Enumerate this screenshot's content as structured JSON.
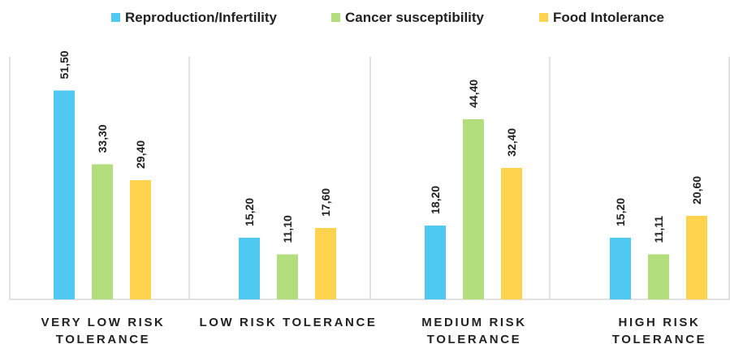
{
  "chart_data": {
    "type": "bar",
    "title": "",
    "xlabel": "",
    "ylabel": "",
    "ylim": [
      0,
      55
    ],
    "grid": false,
    "legend_position": "top",
    "categories": [
      [
        "VERY LOW RISK",
        "TOLERANCE"
      ],
      [
        "LOW RISK TOLERANCE"
      ],
      [
        "MEDIUM RISK",
        "TOLERANCE"
      ],
      [
        "HIGH RISK",
        "TOLERANCE"
      ]
    ],
    "series": [
      {
        "name": "Reproduction/Infertility",
        "color": "#4fc8f2",
        "values": [
          51.5,
          15.2,
          18.2,
          15.2
        ],
        "labels": [
          "51,50",
          "15,20",
          "18,20",
          "15,20"
        ]
      },
      {
        "name": "Cancer susceptibility",
        "color": "#b3de7e",
        "values": [
          33.3,
          11.1,
          44.4,
          11.11
        ],
        "labels": [
          "33,30",
          "11,10",
          "44,40",
          "11,11"
        ]
      },
      {
        "name": "Food Intolerance",
        "color": "#ffd34e",
        "values": [
          29.4,
          17.6,
          32.4,
          20.6
        ],
        "labels": [
          "29,40",
          "17,60",
          "32,40",
          "20,60"
        ]
      }
    ]
  }
}
